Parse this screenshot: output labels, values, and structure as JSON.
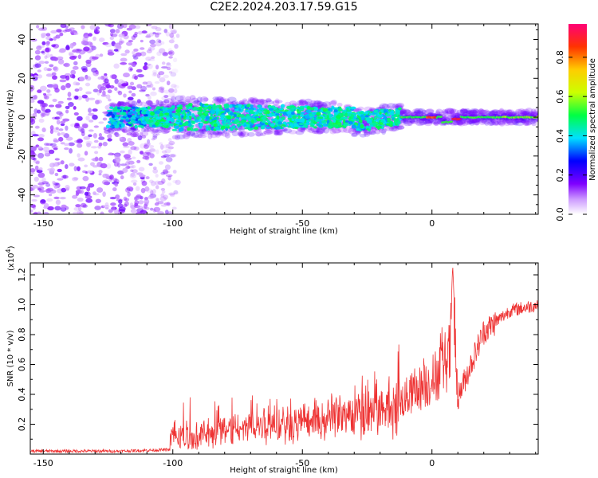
{
  "title": "C2E2.2024.203.17.59.G15",
  "chart_data": [
    {
      "type": "heatmap",
      "xlabel": "Height of straight line (km)",
      "ylabel": "Frequency (Hz)",
      "xlim": [
        -155,
        41
      ],
      "ylim": [
        -50,
        48
      ],
      "xticks": [
        -150,
        -100,
        -50,
        0
      ],
      "yticks": [
        -40,
        -20,
        0,
        20,
        40
      ],
      "colorbar": {
        "label": "Normalized spectral amplitude",
        "range": [
          0,
          0.97
        ],
        "ticks": [
          0.0,
          0.2,
          0.4,
          0.6,
          0.8
        ]
      },
      "regions": [
        {
          "x_range": [
            -155,
            -98
          ],
          "description_value": "scattered noise across all frequencies"
        },
        {
          "x_range": [
            -125,
            -12
          ],
          "freq_band": [
            -10,
            8
          ],
          "peak_amplitude": 0.45
        },
        {
          "x_range": [
            -12,
            41
          ],
          "freq_band": [
            -3,
            2
          ],
          "peak_amplitude": 0.97
        }
      ]
    },
    {
      "type": "line",
      "xlabel": "Height of straight line (km)",
      "ylabel": "SNR (10 * v/v)",
      "y_multiplier": "(x10",
      "y_multiplier_exp": "4",
      "y_multiplier_close": ")",
      "xlim": [
        -155,
        41
      ],
      "ylim": [
        0,
        1.28
      ],
      "xticks": [
        -150,
        -100,
        -50,
        0
      ],
      "yticks": [
        0.2,
        0.4,
        0.6,
        0.8,
        1.0,
        1.2
      ],
      "ytick_labels": [
        "0.2",
        "0.4",
        "0.6",
        "0.8",
        "1.0",
        "1.2"
      ],
      "color": "#ee3333",
      "series_shape": [
        {
          "x": -155,
          "y": 0.02
        },
        {
          "x": -120,
          "y": 0.02
        },
        {
          "x": -101,
          "y": 0.03
        },
        {
          "x": -100,
          "y": 0.12
        },
        {
          "x": -97,
          "y": 0.04
        },
        {
          "x": -90,
          "y": 0.08
        },
        {
          "x": -80,
          "y": 0.14
        },
        {
          "x": -60,
          "y": 0.2
        },
        {
          "x": -40,
          "y": 0.27
        },
        {
          "x": -25,
          "y": 0.35
        },
        {
          "x": -12,
          "y": 0.42
        },
        {
          "x": 0,
          "y": 0.58
        },
        {
          "x": 7,
          "y": 0.78
        },
        {
          "x": 8,
          "y": 1.27
        },
        {
          "x": 10,
          "y": 0.38
        },
        {
          "x": 20,
          "y": 0.82
        },
        {
          "x": 30,
          "y": 0.96
        },
        {
          "x": 41,
          "y": 1.0
        }
      ]
    }
  ]
}
